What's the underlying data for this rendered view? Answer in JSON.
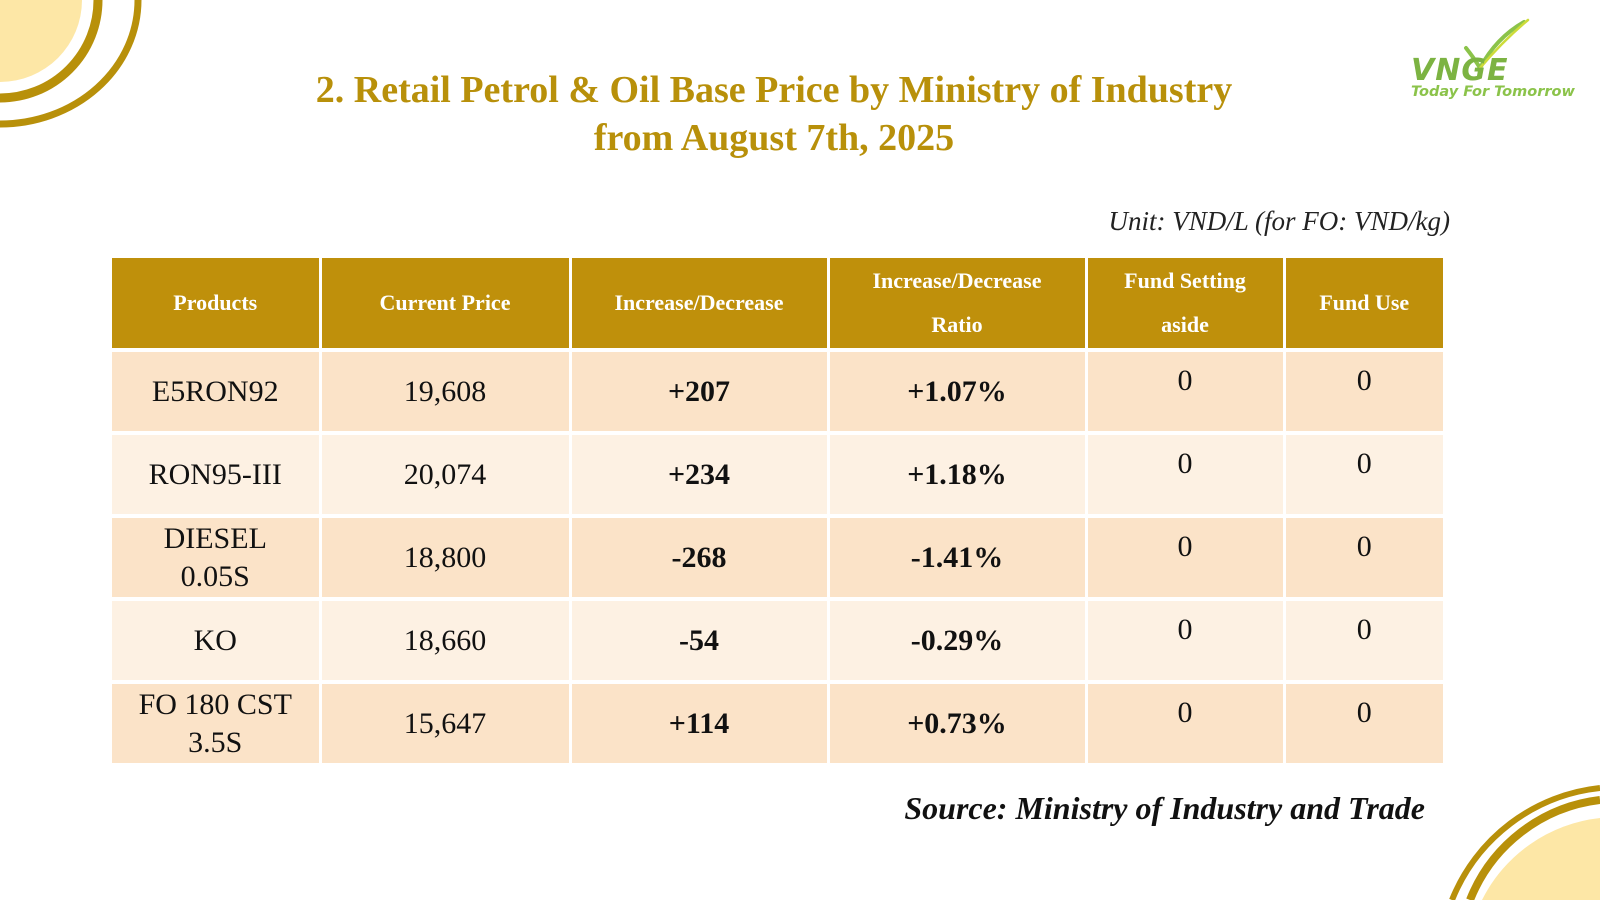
{
  "title": {
    "line1": "2. Retail Petrol & Oil Base Price by Ministry of Industry",
    "line2": "from August 7th, 2025"
  },
  "logo": {
    "text": "VNGE",
    "tagline": "Today For Tomorrow",
    "icon": "vnge-leaf-logo"
  },
  "unit_note": "Unit: VND/L (for FO: VND/kg)",
  "table": {
    "headers": {
      "products": "Products",
      "current_price": "Current Price",
      "change": "Increase/Decrease",
      "ratio_line1": "Increase/Decrease",
      "ratio_line2": "Ratio",
      "fund_setting_line1": "Fund Setting",
      "fund_setting_line2": "aside",
      "fund_use": "Fund Use"
    },
    "rows": [
      {
        "product_line1": "E5RON92",
        "product_line2": "",
        "price": "19,608",
        "change": "+207",
        "ratio": "+1.07%",
        "fund_setting": "0",
        "fund_use": "0"
      },
      {
        "product_line1": "RON95-III",
        "product_line2": "",
        "price": "20,074",
        "change": "+234",
        "ratio": "+1.18%",
        "fund_setting": "0",
        "fund_use": "0"
      },
      {
        "product_line1": "DIESEL",
        "product_line2": "0.05S",
        "price": "18,800",
        "change": "-268",
        "ratio": "-1.41%",
        "fund_setting": "0",
        "fund_use": "0"
      },
      {
        "product_line1": "KO",
        "product_line2": "",
        "price": "18,660",
        "change": "-54",
        "ratio": "-0.29%",
        "fund_setting": "0",
        "fund_use": "0"
      },
      {
        "product_line1": "FO 180 CST",
        "product_line2": "3.5S",
        "price": "15,647",
        "change": "+114",
        "ratio": "+0.73%",
        "fund_setting": "0",
        "fund_use": "0"
      }
    ]
  },
  "source": "Source: Ministry of Industry and Trade",
  "colors": {
    "gold": "#bf900b",
    "title_gold": "#b8900a",
    "increase_green": "#16a34a",
    "decrease_red": "#e00000",
    "row_dark": "#fbe3c8",
    "row_light": "#fdf1e3",
    "corner_fill": "#fde7a6"
  }
}
